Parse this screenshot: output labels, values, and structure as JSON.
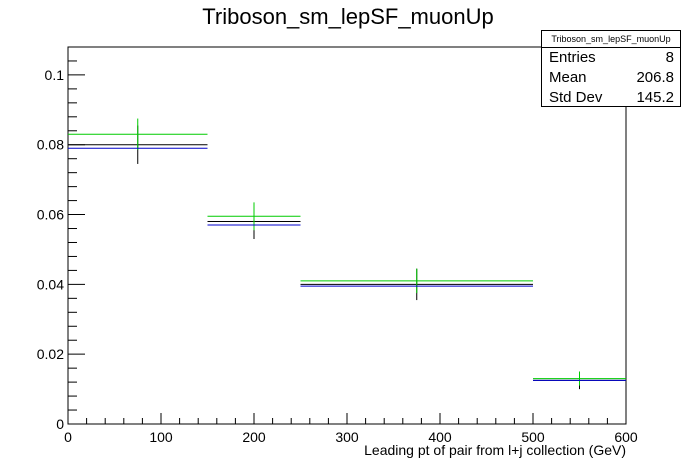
{
  "chart_data": {
    "type": "histogram",
    "title": "Triboson_sm_lepSF_muonUp",
    "xlabel": "Leading pt of pair from l+j collection (GeV)",
    "ylabel": "",
    "xlim": [
      0,
      600
    ],
    "ylim": [
      0,
      0.108
    ],
    "x_ticks": [
      0,
      100,
      200,
      300,
      400,
      500,
      600
    ],
    "y_ticks": [
      0,
      0.02,
      0.04,
      0.06,
      0.08,
      0.1
    ],
    "x_tick_labels": [
      "0",
      "100",
      "200",
      "300",
      "400",
      "500",
      "600"
    ],
    "y_tick_labels": [
      "0",
      "0.02",
      "0.04",
      "0.06",
      "0.08",
      "0.1"
    ],
    "bin_edges": [
      0,
      150,
      250,
      500,
      600
    ],
    "bin_centers": [
      75,
      200,
      375,
      550
    ],
    "series": [
      {
        "color": "#000000",
        "values": [
          0.08,
          0.058,
          0.04,
          0.0125
        ],
        "errors": [
          0.0055,
          0.005,
          0.0045,
          0.0025
        ]
      },
      {
        "color": "#00cc00",
        "values": [
          0.083,
          0.0595,
          0.041,
          0.013
        ],
        "errors": [
          0.0045,
          0.004,
          0.0035,
          0.002
        ]
      },
      {
        "color": "#0000cc",
        "values": [
          0.079,
          0.057,
          0.0395,
          0.0125
        ],
        "errors": [
          0,
          0,
          0,
          0
        ]
      }
    ],
    "stats_box": {
      "name": "Triboson_sm_lepSF_muonUp",
      "entries_label": "Entries",
      "entries": "8",
      "mean_label": "Mean",
      "mean": "206.8",
      "std_label": "Std Dev",
      "std": "145.2"
    }
  }
}
